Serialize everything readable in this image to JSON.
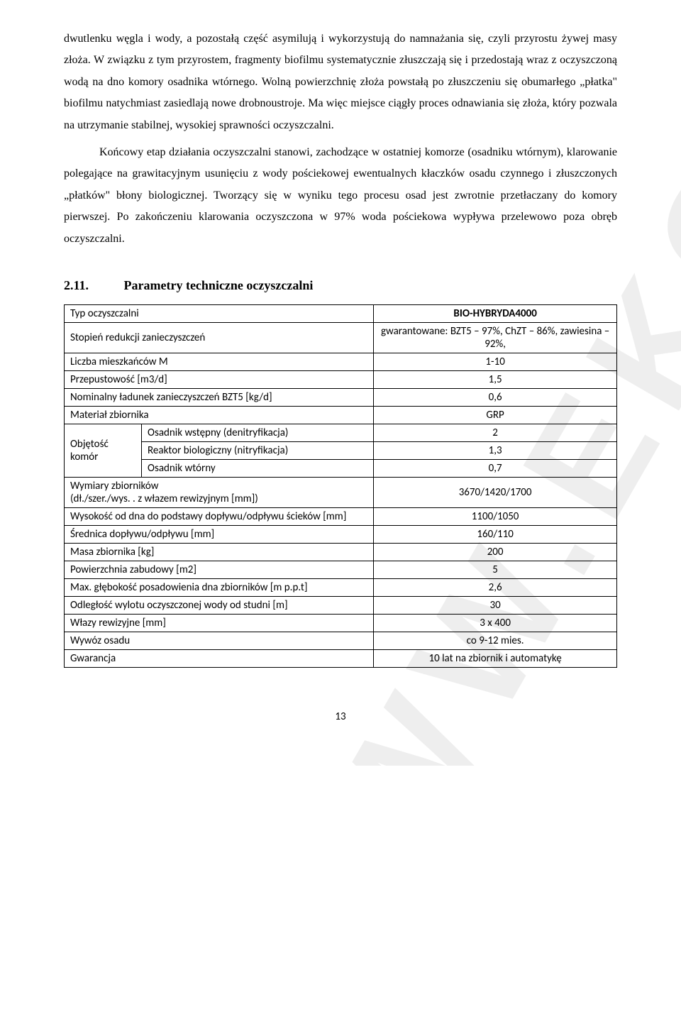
{
  "watermark": "WWW.EKOPOL.PL",
  "paragraphs": {
    "p1": "dwutlenku węgla i wody, a pozostałą część asymilują i wykorzystują do namnażania się, czyli przyrostu żywej masy złoża. W związku z tym przyrostem, fragmenty biofilmu systematycznie złuszczają się i przedostają wraz z oczyszczoną wodą na dno komory osadnika wtórnego. Wolną powierzchnię złoża powstałą po złuszczeniu się obumarłego „płatka\" biofilmu natychmiast zasiedlają nowe drobnoustroje. Ma więc miejsce ciągły proces odnawiania się złoża, który pozwala na utrzymanie stabilnej, wysokiej sprawności oczyszczalni.",
    "p2": "Końcowy etap działania oczyszczalni stanowi, zachodzące w ostatniej komorze (osadniku wtórnym), klarowanie polegające na grawitacyjnym usunięciu z wody pościekowej ewentualnych kłaczków osadu czynnego i złuszczonych „płatków\" błony biologicznej. Tworzący się w wyniku tego procesu osad jest zwrotnie przetłaczany do komory pierwszej. Po zakończeniu klarowania oczyszczona w 97% woda pościekowa wypływa przelewowo poza obręb oczyszczalni."
  },
  "section": {
    "number": "2.11.",
    "title": "Parametry techniczne oczyszczalni"
  },
  "table": {
    "rows": [
      {
        "label": "Typ  oczyszczalni",
        "value": "BIO-HYBRYDA4000",
        "bold": true
      },
      {
        "label": "Stopień redukcji zanieczyszczeń",
        "value": "gwarantowane: BZT5 – 97%, ChZT – 86%, zawiesina –92%,"
      },
      {
        "label": "Liczba mieszkańców M",
        "value": "1-10"
      },
      {
        "label": "Przepustowość [m3/d]",
        "value": "1,5"
      },
      {
        "label": "Nominalny ładunek zanieczyszczeń BZT5 [kg/d]",
        "value": "0,6"
      },
      {
        "label": "Materiał zbiornika",
        "value": "GRP"
      }
    ],
    "volume_group": {
      "group_label": "Objętość komór",
      "subrows": [
        {
          "label": "Osadnik wstępny (denitryfikacja)",
          "value": "2"
        },
        {
          "label": "Reaktor biologiczny (nitryfikacja)",
          "value": "1,3"
        },
        {
          "label": "Osadnik wtórny",
          "value": "0,7"
        }
      ]
    },
    "rows2": [
      {
        "label": "Wymiary zbiorników\n(dł./szer./wys. . z włazem rewizyjnym [mm])",
        "value": "3670/1420/1700"
      },
      {
        "label": "Wysokość od dna do podstawy dopływu/odpływu ścieków [mm]",
        "value": "1100/1050"
      },
      {
        "label": "Średnica dopływu/odpływu [mm]",
        "value": "160/110"
      },
      {
        "label": "Masa zbiornika [kg]",
        "value": "200"
      },
      {
        "label": "Powierzchnia zabudowy  [m2]",
        "value": "5"
      },
      {
        "label": "Max. głębokość posadowienia dna zbiorników [m p.p.t]",
        "value": "2,6"
      },
      {
        "label": "Odległość wylotu oczyszczonej wody od studni [m]",
        "value": "30"
      },
      {
        "label": "Włazy rewizyjne [mm]",
        "value": "3 x 400"
      },
      {
        "label": "Wywóz osadu",
        "value": "co 9-12 mies."
      },
      {
        "label": "Gwarancja",
        "value": "10 lat na zbiornik i automatykę"
      }
    ]
  },
  "page_number": "13"
}
